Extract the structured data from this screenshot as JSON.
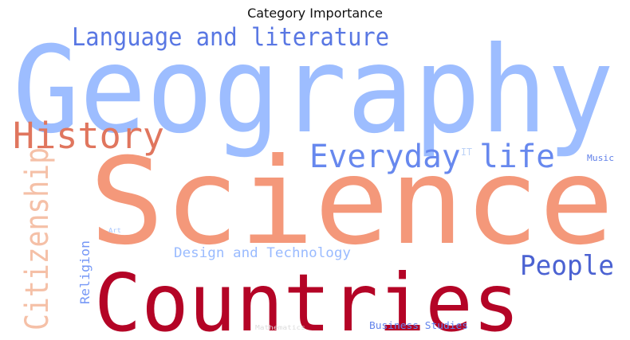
{
  "chart_data": {
    "type": "wordcloud",
    "title": "Category Importance",
    "words": [
      {
        "text": "Geography",
        "color": "#9dbdff"
      },
      {
        "text": "Science",
        "color": "#f4987a"
      },
      {
        "text": "Countries",
        "color": "#b40426"
      },
      {
        "text": "Language and literature",
        "color": "#5977e3"
      },
      {
        "text": "History",
        "color": "#e0765e"
      },
      {
        "text": "Everyday life",
        "color": "#6788ee"
      },
      {
        "text": "Citizenship",
        "color": "#f5c0a7"
      },
      {
        "text": "People",
        "color": "#4b62d2"
      },
      {
        "text": "Design and Technology",
        "color": "#9abbff"
      },
      {
        "text": "Religion",
        "color": "#7597f6"
      },
      {
        "text": "Business Studies",
        "color": "#6485ec"
      },
      {
        "text": "Music",
        "color": "#5f7fe8"
      },
      {
        "text": "IT",
        "color": "#bcd2f7"
      },
      {
        "text": "Art",
        "color": "#aac7fd"
      },
      {
        "text": "Mathematics",
        "color": "#dcdcdc"
      }
    ]
  }
}
